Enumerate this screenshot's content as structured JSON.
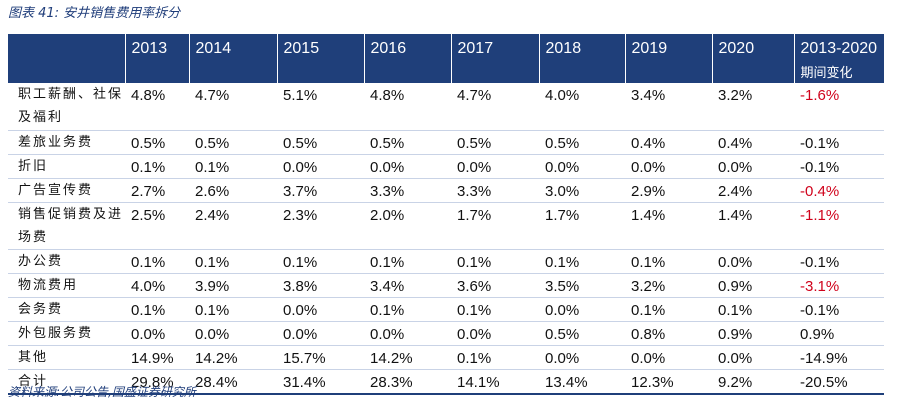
{
  "caption": "图表 41:  安井销售费用率拆分",
  "source": "资料来源:公司公告,国盛证券研究所",
  "table": {
    "headers": [
      "",
      "2013",
      "2014",
      "2015",
      "2016",
      "2017",
      "2018",
      "2019",
      "2020"
    ],
    "last_header": {
      "line1": "2013-2020",
      "line2": "期间变化"
    },
    "highlight_color": "#d0021b",
    "rows": [
      {
        "label": "职工薪酬、社保及福利",
        "values": [
          "4.8%",
          "4.7%",
          "5.1%",
          "4.8%",
          "4.7%",
          "4.0%",
          "3.4%",
          "3.2%"
        ],
        "change": "-1.6%",
        "red": true
      },
      {
        "label": "差旅业务费",
        "values": [
          "0.5%",
          "0.5%",
          "0.5%",
          "0.5%",
          "0.5%",
          "0.5%",
          "0.4%",
          "0.4%"
        ],
        "change": "-0.1%",
        "red": false
      },
      {
        "label": "折旧",
        "values": [
          "0.1%",
          "0.1%",
          "0.0%",
          "0.0%",
          "0.0%",
          "0.0%",
          "0.0%",
          "0.0%"
        ],
        "change": "-0.1%",
        "red": false
      },
      {
        "label": "广告宣传费",
        "values": [
          "2.7%",
          "2.6%",
          "3.7%",
          "3.3%",
          "3.3%",
          "3.0%",
          "2.9%",
          "2.4%"
        ],
        "change": "-0.4%",
        "red": true
      },
      {
        "label": "销售促销费及进场费",
        "values": [
          "2.5%",
          "2.4%",
          "2.3%",
          "2.0%",
          "1.7%",
          "1.7%",
          "1.4%",
          "1.4%"
        ],
        "change": "-1.1%",
        "red": true
      },
      {
        "label": "办公费",
        "values": [
          "0.1%",
          "0.1%",
          "0.1%",
          "0.1%",
          "0.1%",
          "0.1%",
          "0.1%",
          "0.0%"
        ],
        "change": "-0.1%",
        "red": false
      },
      {
        "label": "物流费用",
        "values": [
          "4.0%",
          "3.9%",
          "3.8%",
          "3.4%",
          "3.6%",
          "3.5%",
          "3.2%",
          "0.9%"
        ],
        "change": "-3.1%",
        "red": true
      },
      {
        "label": "会务费",
        "values": [
          "0.1%",
          "0.1%",
          "0.0%",
          "0.1%",
          "0.1%",
          "0.0%",
          "0.1%",
          "0.1%"
        ],
        "change": "-0.1%",
        "red": false
      },
      {
        "label": "外包服务费",
        "values": [
          "0.0%",
          "0.0%",
          "0.0%",
          "0.0%",
          "0.0%",
          "0.5%",
          "0.8%",
          "0.9%"
        ],
        "change": "0.9%",
        "red": false
      },
      {
        "label": "其他",
        "values": [
          "14.9%",
          "14.2%",
          "15.7%",
          "14.2%",
          "0.1%",
          "0.0%",
          "0.0%",
          "0.0%"
        ],
        "change": "-14.9%",
        "red": false
      },
      {
        "label": "合计",
        "values": [
          "29.8%",
          "28.4%",
          "31.4%",
          "28.3%",
          "14.1%",
          "13.4%",
          "12.3%",
          "9.2%"
        ],
        "change": "-20.5%",
        "red": false
      }
    ]
  }
}
